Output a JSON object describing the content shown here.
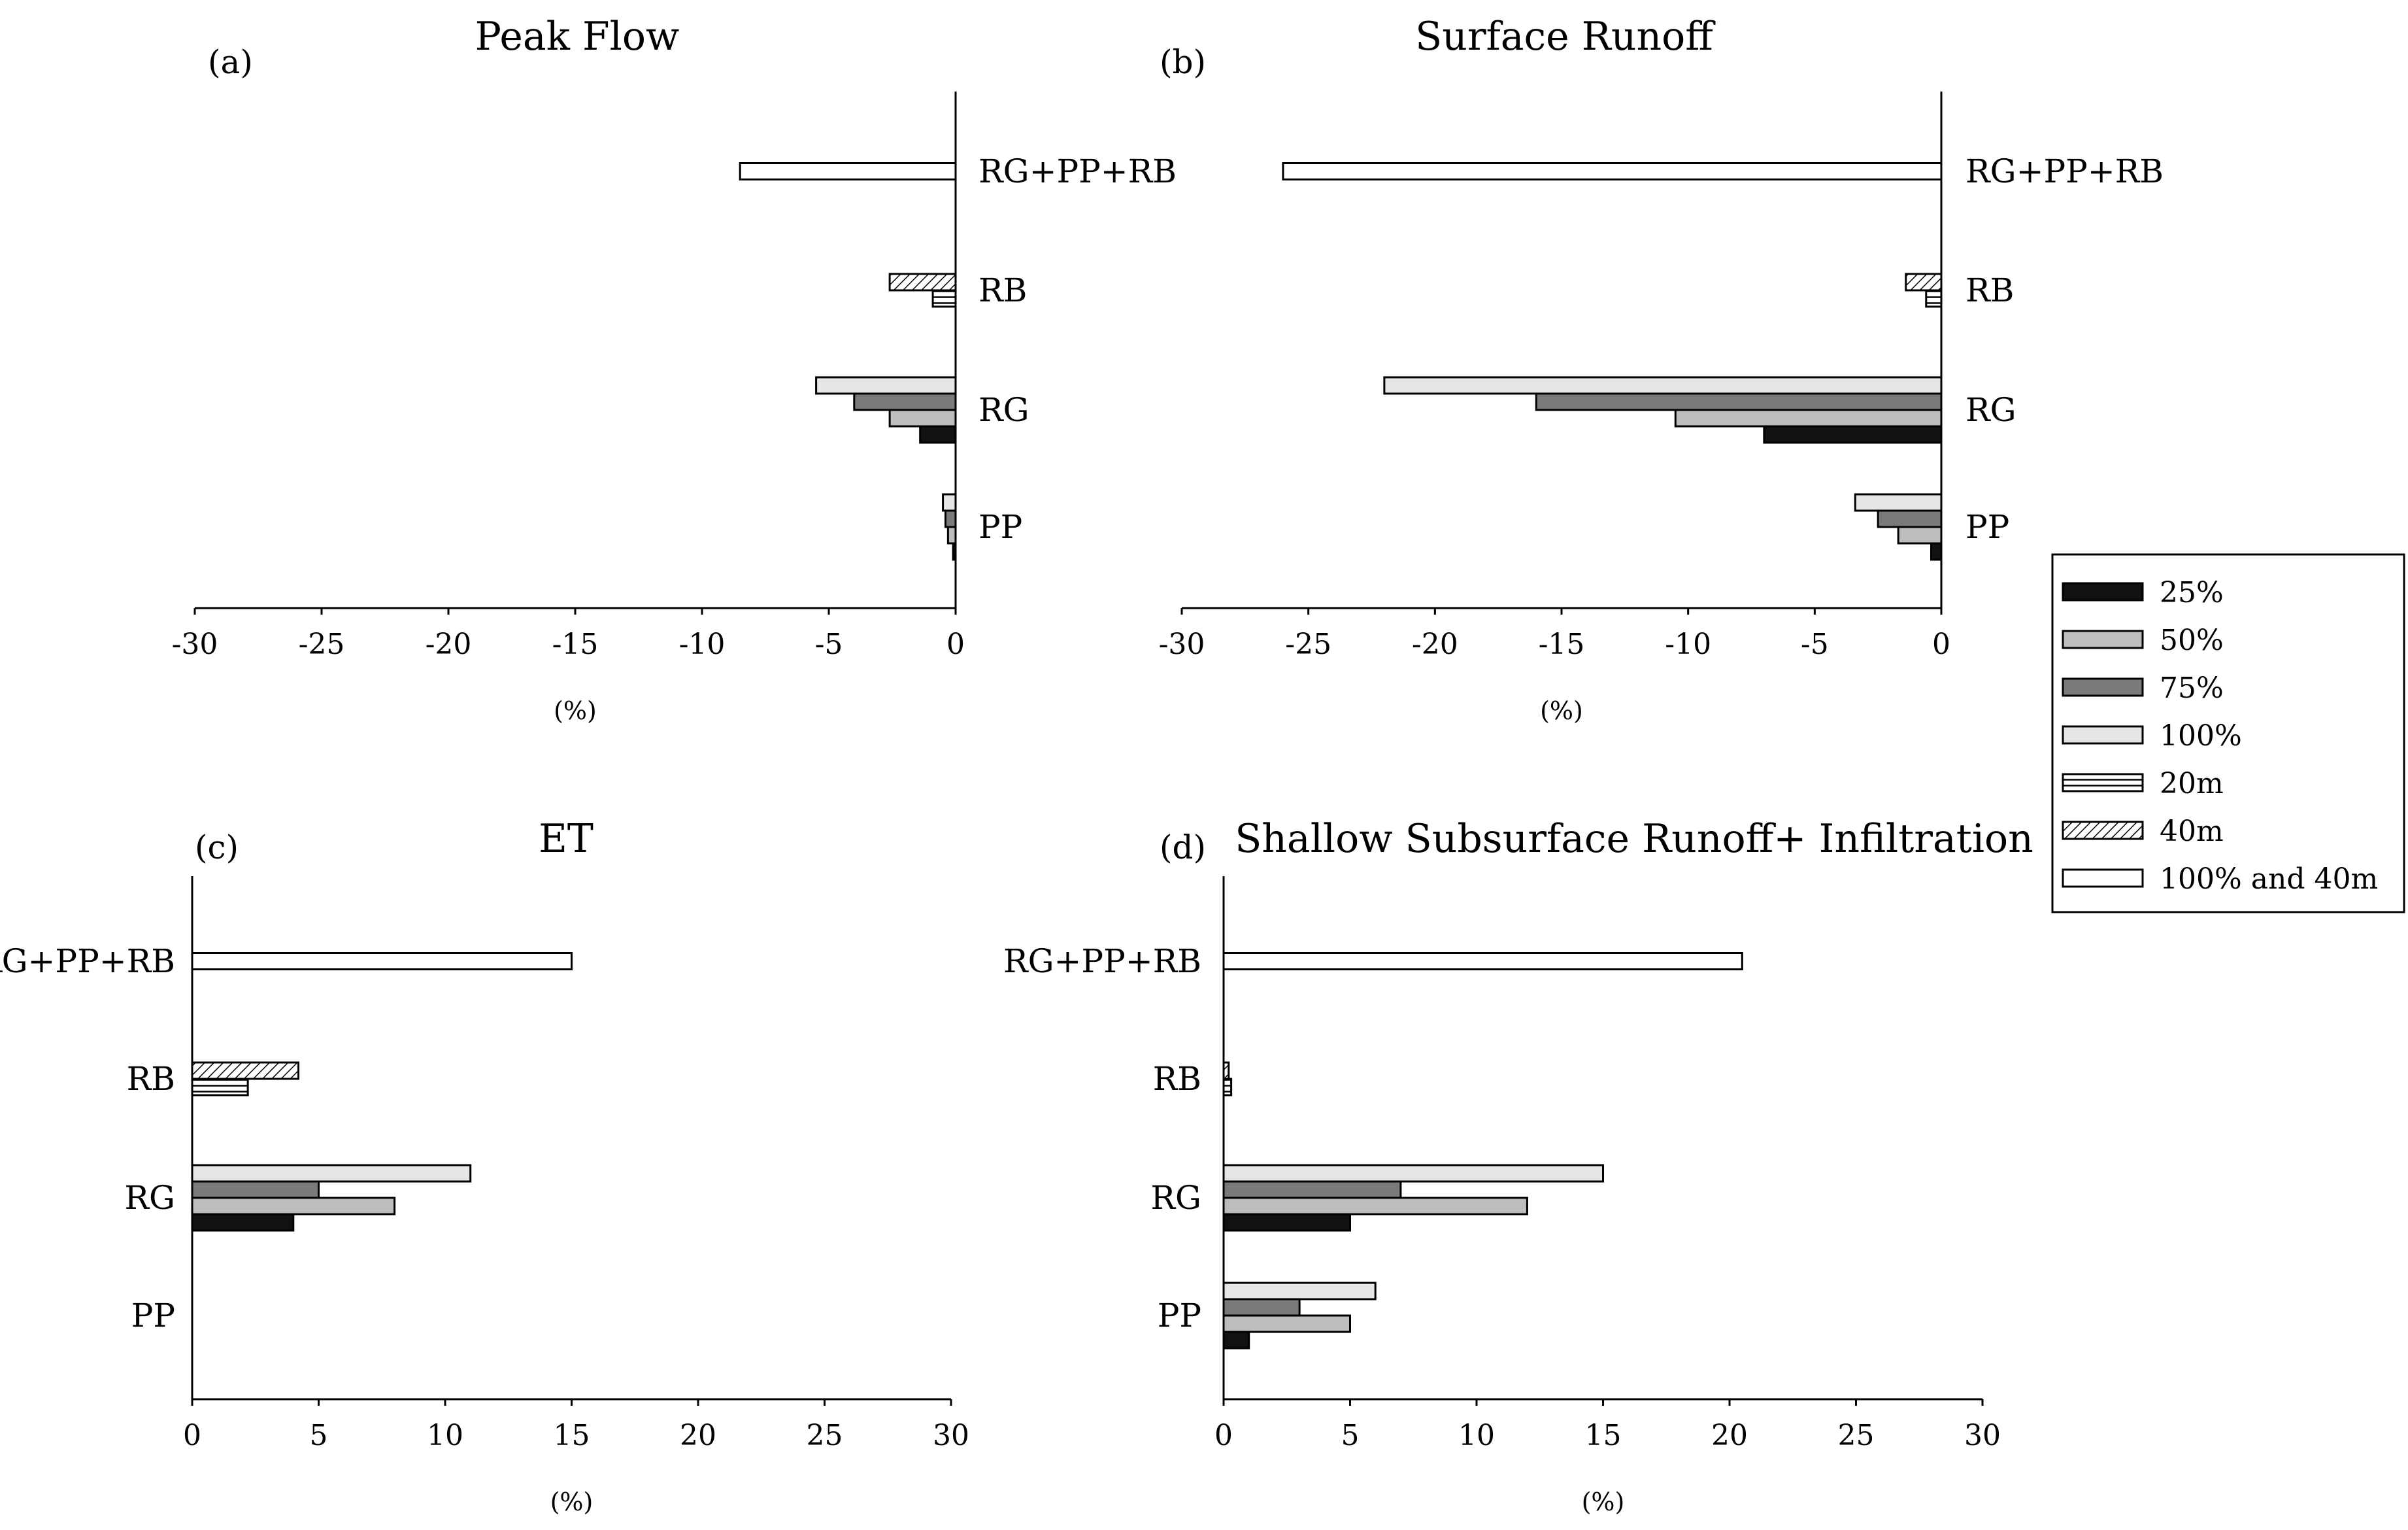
{
  "legend": {
    "items": [
      {
        "label": "25%",
        "fill": "#111111",
        "pattern": "solid"
      },
      {
        "label": "50%",
        "fill": "#bdbdbd",
        "pattern": "solid"
      },
      {
        "label": "75%",
        "fill": "#7a7a7a",
        "pattern": "solid"
      },
      {
        "label": "100%",
        "fill": "#e6e6e6",
        "pattern": "solid"
      },
      {
        "label": "20m",
        "fill": "#ffffff",
        "pattern": "hstripe"
      },
      {
        "label": "40m",
        "fill": "#ffffff",
        "pattern": "diag"
      },
      {
        "label": "100% and 40m",
        "fill": "#ffffff",
        "pattern": "solid"
      }
    ]
  },
  "chart_data": [
    {
      "type": "bar",
      "orientation": "horizontal",
      "panel": "(a)",
      "title": "Peak Flow",
      "xlabel": "(%)",
      "xlim": [
        -30,
        0
      ],
      "xticks": [
        -30,
        -25,
        -20,
        -15,
        -10,
        -5,
        0
      ],
      "categories": [
        "RG+PP+RB",
        "RB",
        "RG",
        "PP"
      ],
      "series": [
        {
          "name": "100%",
          "values": [
            null,
            null,
            -5.5,
            -0.5
          ]
        },
        {
          "name": "75%",
          "values": [
            null,
            null,
            -4.0,
            -0.4
          ]
        },
        {
          "name": "50%",
          "values": [
            null,
            null,
            -2.6,
            -0.3
          ]
        },
        {
          "name": "25%",
          "values": [
            null,
            null,
            -1.4,
            -0.1
          ]
        },
        {
          "name": "40m",
          "values": [
            null,
            -2.6,
            null,
            null
          ]
        },
        {
          "name": "20m",
          "values": [
            null,
            -0.9,
            null,
            null
          ]
        },
        {
          "name": "100% and 40m",
          "values": [
            -8.5,
            null,
            null,
            null
          ]
        }
      ]
    },
    {
      "type": "bar",
      "orientation": "horizontal",
      "panel": "(b)",
      "title": "Surface Runoff",
      "xlabel": "(%)",
      "xlim": [
        -30,
        0
      ],
      "xticks": [
        -30,
        -25,
        -20,
        -15,
        -10,
        -5,
        0
      ],
      "categories": [
        "RG+PP+RB",
        "RB",
        "RG",
        "PP"
      ],
      "series": [
        {
          "name": "100%",
          "values": [
            null,
            null,
            -22.0,
            -3.4
          ]
        },
        {
          "name": "75%",
          "values": [
            null,
            null,
            -16.0,
            -2.5
          ]
        },
        {
          "name": "50%",
          "values": [
            null,
            null,
            -10.5,
            -1.7
          ]
        },
        {
          "name": "25%",
          "values": [
            null,
            null,
            -7.0,
            -0.4
          ]
        },
        {
          "name": "40m",
          "values": [
            null,
            -1.4,
            null,
            null
          ]
        },
        {
          "name": "20m",
          "values": [
            null,
            -0.6,
            null,
            null
          ]
        },
        {
          "name": "100% and 40m",
          "values": [
            -26.0,
            null,
            null,
            null
          ]
        }
      ]
    },
    {
      "type": "bar",
      "orientation": "horizontal",
      "panel": "(c)",
      "title": "ET",
      "xlabel": "(%)",
      "xlim": [
        0,
        30
      ],
      "xticks": [
        0,
        5,
        10,
        15,
        20,
        25,
        30
      ],
      "categories": [
        "RG+PP+RB",
        "RB",
        "RG",
        "PP"
      ],
      "series": [
        {
          "name": "100%",
          "values": [
            null,
            null,
            11.0,
            null
          ]
        },
        {
          "name": "75%",
          "values": [
            null,
            null,
            5.0,
            null
          ]
        },
        {
          "name": "50%",
          "values": [
            null,
            null,
            8.0,
            null
          ]
        },
        {
          "name": "25%",
          "values": [
            null,
            null,
            4.0,
            null
          ]
        },
        {
          "name": "40m",
          "values": [
            null,
            4.2,
            null,
            null
          ]
        },
        {
          "name": "20m",
          "values": [
            null,
            2.2,
            null,
            null
          ]
        },
        {
          "name": "100% and 40m",
          "values": [
            15.0,
            null,
            null,
            null
          ]
        }
      ]
    },
    {
      "type": "bar",
      "orientation": "horizontal",
      "panel": "(d)",
      "title": "Shallow Subsurface Runoff+ Infiltration",
      "xlabel": "(%)",
      "xlim": [
        0,
        30
      ],
      "xticks": [
        0,
        5,
        10,
        15,
        20,
        25,
        30
      ],
      "categories": [
        "RG+PP+RB",
        "RB",
        "RG",
        "PP"
      ],
      "series": [
        {
          "name": "100%",
          "values": [
            null,
            null,
            15.0,
            6.0
          ]
        },
        {
          "name": "75%",
          "values": [
            null,
            null,
            7.0,
            3.0
          ]
        },
        {
          "name": "50%",
          "values": [
            null,
            null,
            12.0,
            5.0
          ]
        },
        {
          "name": "25%",
          "values": [
            null,
            null,
            5.0,
            1.0
          ]
        },
        {
          "name": "40m",
          "values": [
            null,
            0.2,
            null,
            null
          ]
        },
        {
          "name": "20m",
          "values": [
            null,
            0.3,
            null,
            null
          ]
        },
        {
          "name": "100% and 40m",
          "values": [
            20.5,
            null,
            null,
            null
          ]
        }
      ]
    }
  ]
}
